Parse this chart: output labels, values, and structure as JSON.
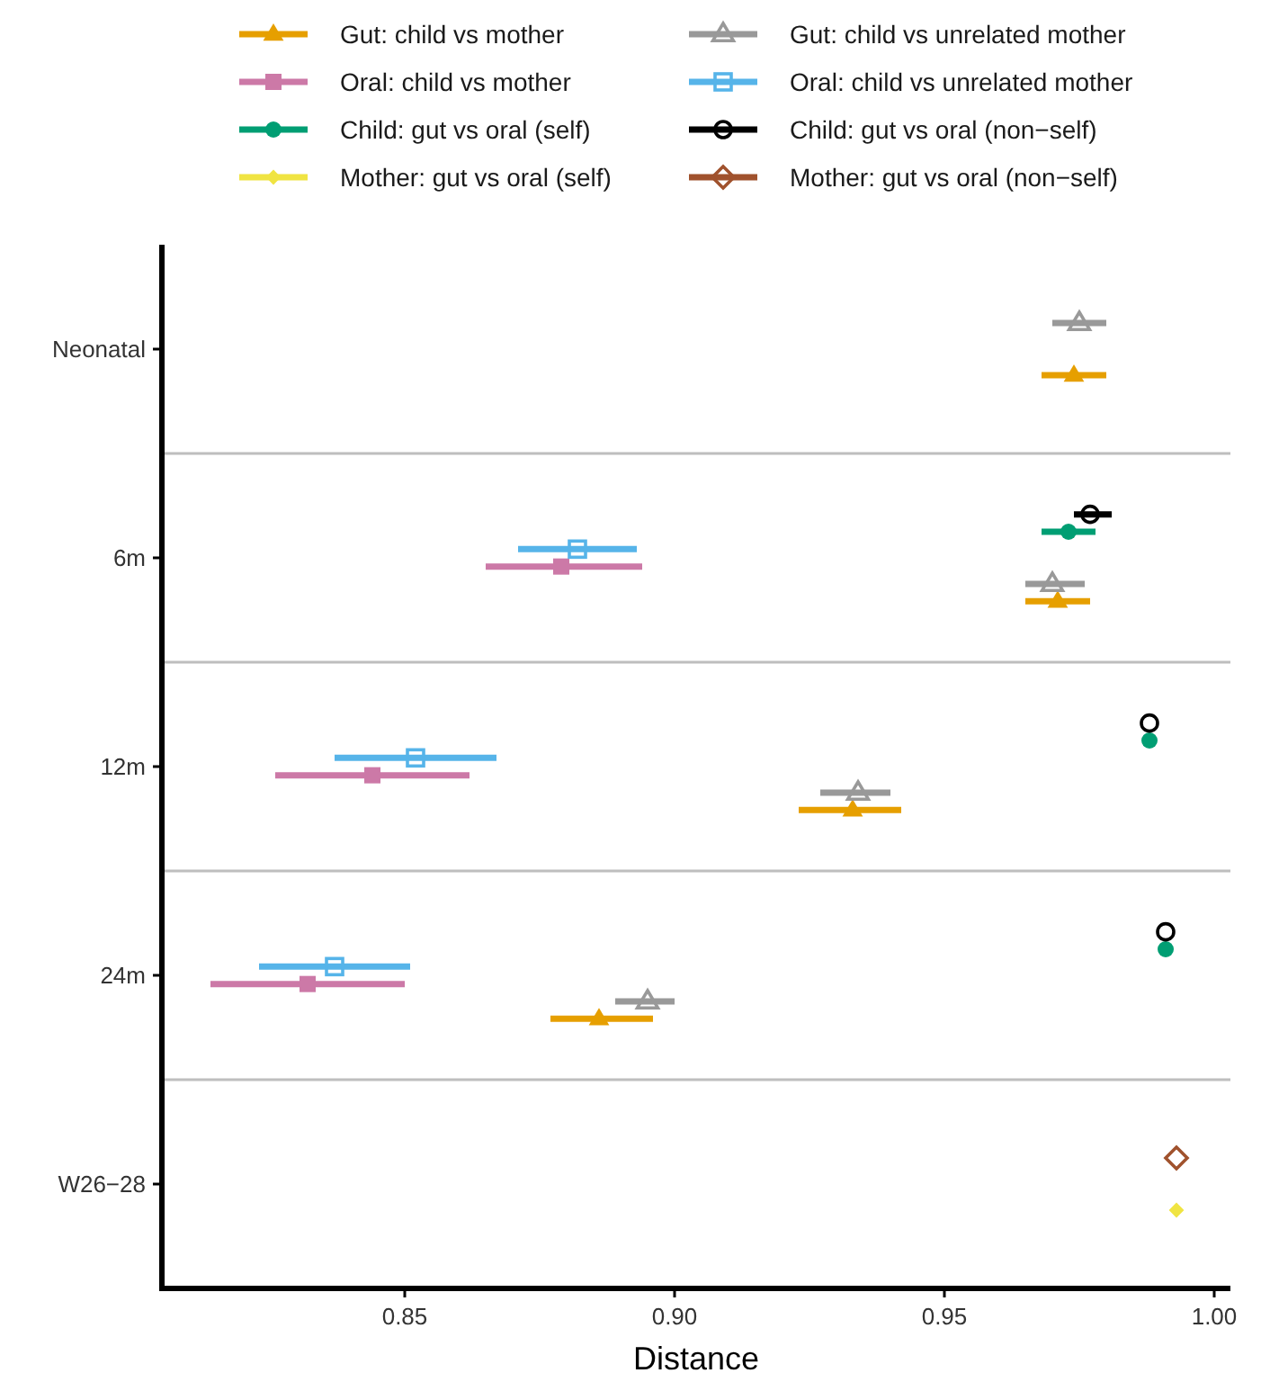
{
  "chart_data": {
    "type": "scatter",
    "orientation": "horizontal",
    "xlabel": "Distance",
    "categories": [
      "Neonatal",
      "6m",
      "12m",
      "24m",
      "W26−28"
    ],
    "xlim": [
      0.805,
      1.003
    ],
    "xticks": [
      {
        "value": 0.85,
        "label": "0.85"
      },
      {
        "value": 0.9,
        "label": "0.90"
      },
      {
        "value": 0.95,
        "label": "0.95"
      },
      {
        "value": 1.0,
        "label": "1.00"
      }
    ],
    "grid": "y",
    "legend": "top",
    "series": [
      {
        "name": "Gut: child vs mother",
        "color": "#e69f00",
        "marker": "triangle",
        "values": [
          0.974,
          0.971,
          0.933,
          0.886,
          null
        ],
        "errors": [
          [
            0.968,
            0.98
          ],
          [
            0.965,
            0.977
          ],
          [
            0.923,
            0.942
          ],
          [
            0.877,
            0.896
          ],
          null
        ]
      },
      {
        "name": "Gut: child vs unrelated mother",
        "color": "#999999",
        "marker": "triangle",
        "values": [
          0.975,
          0.97,
          0.934,
          0.895,
          null
        ],
        "errors": [
          [
            0.97,
            0.98
          ],
          [
            0.965,
            0.976
          ],
          [
            0.927,
            0.94
          ],
          [
            0.889,
            0.9
          ],
          null
        ]
      },
      {
        "name": "Oral: child vs mother",
        "color": "#cc79a7",
        "marker": "square",
        "values": [
          null,
          0.879,
          0.844,
          0.832,
          null
        ],
        "errors": [
          null,
          [
            0.865,
            0.894
          ],
          [
            0.826,
            0.862
          ],
          [
            0.814,
            0.85
          ],
          null
        ]
      },
      {
        "name": "Oral: child vs unrelated mother",
        "color": "#56b4e9",
        "marker": "square",
        "values": [
          null,
          0.882,
          0.852,
          0.837,
          null
        ],
        "errors": [
          null,
          [
            0.871,
            0.893
          ],
          [
            0.837,
            0.867
          ],
          [
            0.823,
            0.851
          ],
          null
        ]
      },
      {
        "name": "Child: gut vs oral (self)",
        "color": "#009e73",
        "marker": "circle",
        "values": [
          null,
          0.973,
          0.988,
          0.991,
          null
        ],
        "errors": [
          null,
          [
            0.968,
            0.978
          ],
          null,
          null,
          null
        ]
      },
      {
        "name": "Child: gut vs oral (non−self)",
        "color": "#000000",
        "marker": "circle",
        "values": [
          null,
          0.977,
          0.988,
          0.991,
          null
        ],
        "errors": [
          null,
          [
            0.974,
            0.981
          ],
          null,
          null,
          null
        ]
      },
      {
        "name": "Mother: gut vs oral (self)",
        "color": "#f0e442",
        "marker": "diamond",
        "values": [
          null,
          null,
          null,
          null,
          0.993
        ]
      },
      {
        "name": "Mother: gut vs oral (non−self)",
        "color": "#a0522d",
        "marker": "diamond",
        "values": [
          null,
          null,
          null,
          null,
          0.993
        ]
      }
    ]
  }
}
